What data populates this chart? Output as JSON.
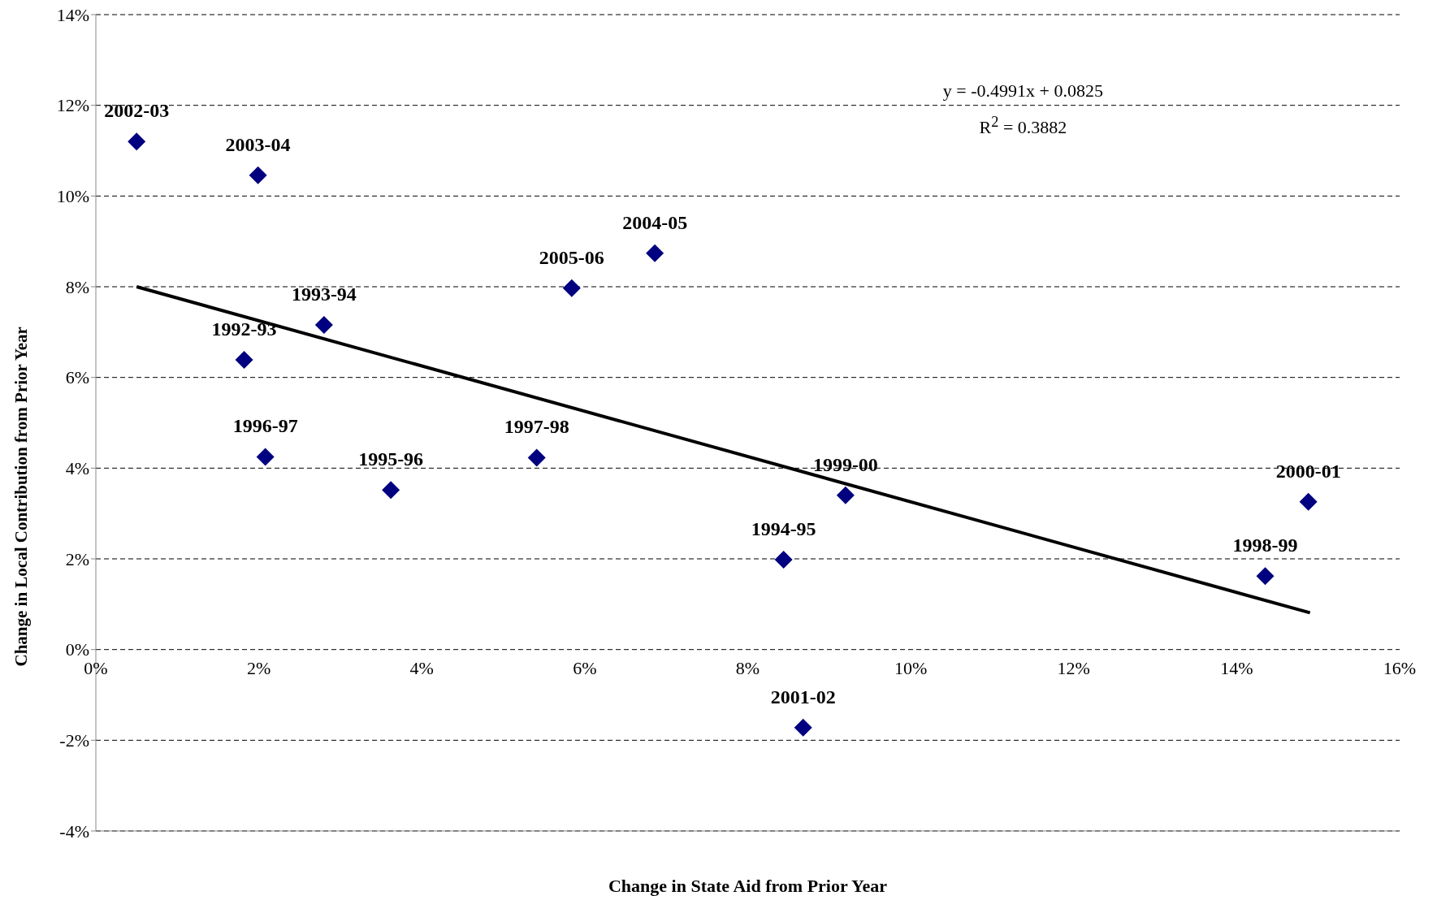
{
  "chart_data": {
    "type": "scatter",
    "xlabel": "Change in State Aid from Prior Year",
    "ylabel": "Change in Local Contribution from Prior Year",
    "xlim": [
      0,
      16
    ],
    "xticks": [
      {
        "value": 0,
        "label": "0%"
      },
      {
        "value": 2,
        "label": "2%"
      },
      {
        "value": 4,
        "label": "4%"
      },
      {
        "value": 6,
        "label": "6%"
      },
      {
        "value": 8,
        "label": "8%"
      },
      {
        "value": 10,
        "label": "10%"
      },
      {
        "value": 12,
        "label": "12%"
      },
      {
        "value": 14,
        "label": "14%"
      },
      {
        "value": 16,
        "label": "16%"
      }
    ],
    "ylim": [
      -4,
      14
    ],
    "yticks": [
      {
        "value": -4,
        "label": "-4%"
      },
      {
        "value": -2,
        "label": "-2%"
      },
      {
        "value": 0,
        "label": "0%"
      },
      {
        "value": 2,
        "label": "2%"
      },
      {
        "value": 4,
        "label": "4%"
      },
      {
        "value": 6,
        "label": "6%"
      },
      {
        "value": 8,
        "label": "8%"
      },
      {
        "value": 10,
        "label": "10%"
      },
      {
        "value": 12,
        "label": "12%"
      },
      {
        "value": 14,
        "label": "14%"
      }
    ],
    "grid": "y",
    "marker": "diamond",
    "series": [
      {
        "color": "#000080",
        "x": [
          0.5,
          1.99,
          2.8,
          1.82,
          2.08,
          3.62,
          5.41,
          5.84,
          6.86,
          9.2,
          8.44,
          8.68,
          14.35,
          14.88
        ],
        "values": [
          11.2,
          10.46,
          7.16,
          6.39,
          4.25,
          3.52,
          4.23,
          7.97,
          8.74,
          3.4,
          1.98,
          -1.72,
          1.62,
          3.26
        ]
      },
      {
        "type": "line",
        "color": "#000000",
        "marker": "none",
        "x": [
          0.5,
          14.9
        ],
        "values": [
          8.0,
          0.81
        ]
      }
    ],
    "annotations": [
      {
        "text": "2002-03",
        "x": 0.5,
        "y": 11.2
      },
      {
        "text": "2003-04",
        "x": 1.99,
        "y": 10.46
      },
      {
        "text": "1993-94",
        "x": 2.8,
        "y": 7.16
      },
      {
        "text": "1992-93",
        "x": 1.82,
        "y": 6.39
      },
      {
        "text": "1996-97",
        "x": 2.08,
        "y": 4.25
      },
      {
        "text": "1995-96",
        "x": 3.62,
        "y": 3.52
      },
      {
        "text": "1997-98",
        "x": 5.41,
        "y": 4.23
      },
      {
        "text": "2005-06",
        "x": 5.84,
        "y": 7.97
      },
      {
        "text": "2004-05",
        "x": 6.86,
        "y": 8.74
      },
      {
        "text": "1999-00",
        "x": 9.2,
        "y": 3.4
      },
      {
        "text": "1994-95",
        "x": 8.44,
        "y": 1.98
      },
      {
        "text": "2001-02",
        "x": 8.68,
        "y": -1.72
      },
      {
        "text": "1998-99",
        "x": 14.35,
        "y": 1.62
      },
      {
        "text": "2000-01",
        "x": 14.88,
        "y": 3.26
      },
      "y = -0.4991x + 0.0825",
      "R$^{2}$ = 0.3882"
    ]
  }
}
